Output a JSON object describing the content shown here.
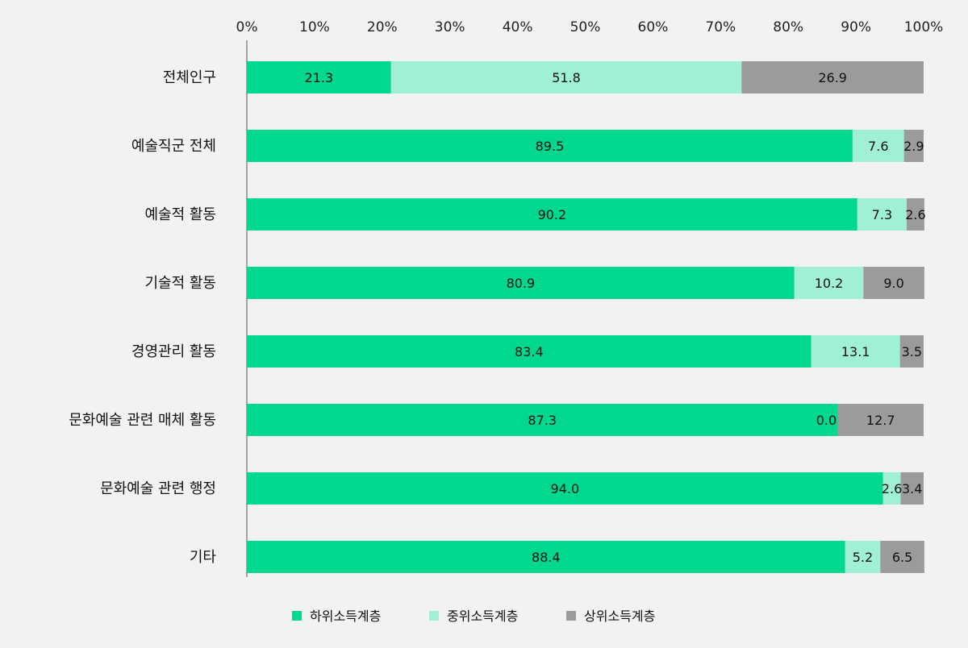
{
  "chart_data": {
    "type": "bar",
    "orientation": "horizontal",
    "stacked": true,
    "categories": [
      "전체인구",
      "예술직군 전체",
      "예술적 활동",
      "기술적 활동",
      "경영관리 활동",
      "문화예술 관련 매체 활동",
      "문화예술 관련 행정",
      "기타"
    ],
    "series": [
      {
        "name": "하위소득계층",
        "color": "#00d890",
        "values": [
          21.3,
          89.5,
          90.2,
          80.9,
          83.4,
          87.3,
          94.0,
          88.4
        ]
      },
      {
        "name": "중위소득계층",
        "color": "#9ff0d4",
        "values": [
          51.8,
          7.6,
          7.3,
          10.2,
          13.1,
          0.0,
          2.6,
          5.2
        ]
      },
      {
        "name": "상위소득계층",
        "color": "#9b9b9b",
        "values": [
          26.9,
          2.9,
          2.6,
          9.0,
          3.5,
          12.7,
          3.4,
          6.5
        ]
      }
    ],
    "value_labels": [
      [
        "21.3",
        "51.8",
        "26.9"
      ],
      [
        "89.5",
        "7.6",
        "2.9"
      ],
      [
        "90.2",
        "7.3",
        "2.6"
      ],
      [
        "80.9",
        "10.2",
        "9.0"
      ],
      [
        "83.4",
        "13.1",
        "3.5"
      ],
      [
        "87.3",
        "0.0",
        "12.7"
      ],
      [
        "94.0",
        "2.6",
        "3.4"
      ],
      [
        "88.4",
        "5.2",
        "6.5"
      ]
    ],
    "xlim": [
      0,
      100
    ],
    "x_ticks": [
      "0%",
      "10%",
      "20%",
      "30%",
      "40%",
      "50%",
      "60%",
      "70%",
      "80%",
      "90%",
      "100%"
    ],
    "x_axis_position": "top",
    "grid": false,
    "legend_position": "bottom"
  }
}
